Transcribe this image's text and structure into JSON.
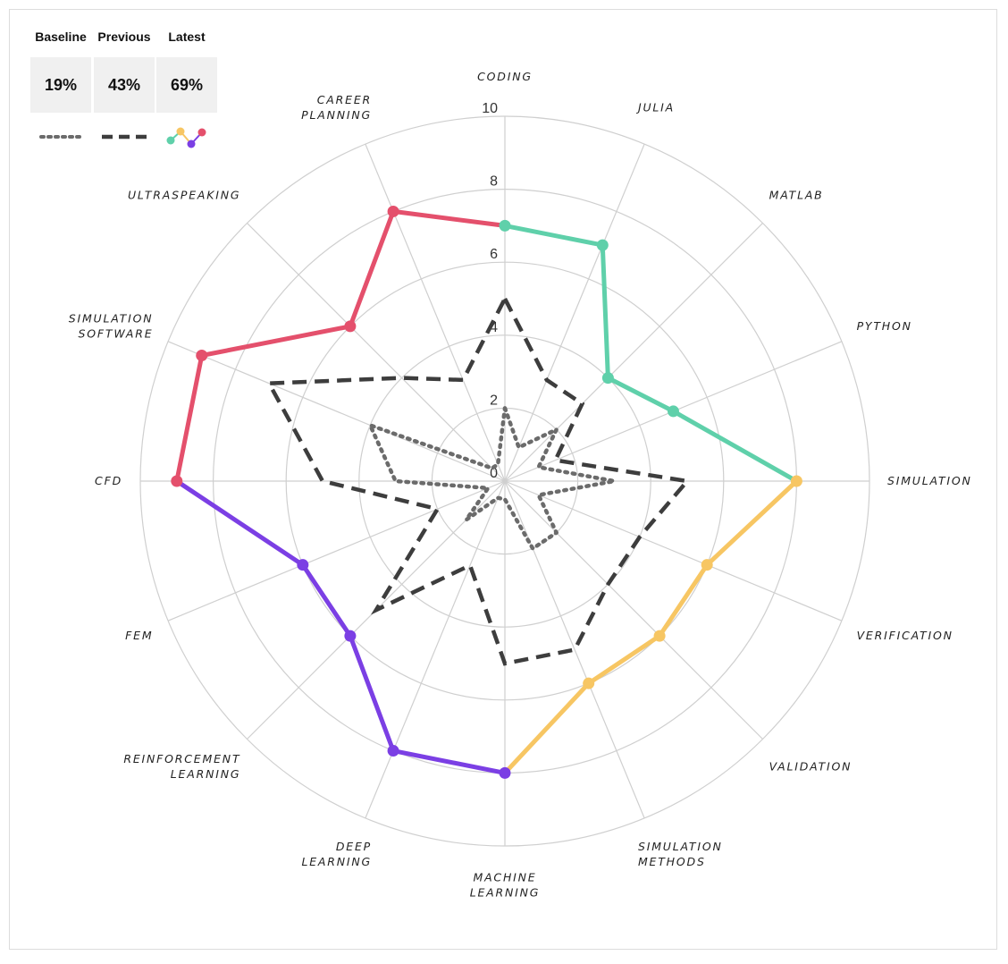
{
  "legend": {
    "baseline": {
      "label": "Baseline",
      "value": "19%"
    },
    "previous": {
      "label": "Previous",
      "value": "43%"
    },
    "latest": {
      "label": "Latest",
      "value": "69%"
    }
  },
  "chart_data": {
    "type": "radar",
    "r_ticks": [
      "0",
      "2",
      "4",
      "6",
      "8",
      "10"
    ],
    "rlim": [
      0,
      10
    ],
    "grid": true,
    "axes": [
      {
        "label": [
          "CODING"
        ]
      },
      {
        "label": [
          "JULIA"
        ]
      },
      {
        "label": [
          "MATLAB"
        ]
      },
      {
        "label": [
          "PYTHON"
        ]
      },
      {
        "label": [
          "SIMULATION"
        ]
      },
      {
        "label": [
          "VERIFICATION"
        ]
      },
      {
        "label": [
          "VALIDATION"
        ]
      },
      {
        "label": [
          "SIMULATION",
          "METHODS"
        ]
      },
      {
        "label": [
          "MACHINE",
          "LEARNING"
        ]
      },
      {
        "label": [
          "DEEP",
          "LEARNING"
        ]
      },
      {
        "label": [
          "REINFORCEMENT",
          "LEARNING"
        ]
      },
      {
        "label": [
          "FEM"
        ]
      },
      {
        "label": [
          "CFD"
        ]
      },
      {
        "label": [
          "SIMULATION",
          "SOFTWARE"
        ]
      },
      {
        "label": [
          "ULTRASPEAKING"
        ]
      },
      {
        "label": [
          "CAREER",
          "PLANNING"
        ]
      }
    ],
    "series": [
      {
        "name": "Baseline",
        "style": "dotted",
        "color": "#6b6b6b",
        "values": [
          2,
          1,
          2,
          1,
          3,
          1,
          2,
          2,
          0.5,
          0.5,
          1.5,
          0.5,
          3,
          4,
          0.5,
          0.5
        ]
      },
      {
        "name": "Previous",
        "style": "dashed",
        "color": "#3d3d3d",
        "values": [
          5,
          3,
          3,
          1.5,
          5,
          4,
          4,
          5,
          5,
          2.5,
          5,
          2,
          5,
          7,
          4,
          3
        ]
      },
      {
        "name": "Latest",
        "style": "solid",
        "values": [
          7,
          7,
          4,
          5,
          8,
          6,
          6,
          6,
          8,
          8,
          6,
          6,
          9,
          9,
          6,
          8
        ],
        "segment_colors": {
          "teal": {
            "color": "#5fd0aa",
            "from": 0,
            "to": 4
          },
          "yellow": {
            "color": "#f7c663",
            "from": 4,
            "to": 8
          },
          "purple": {
            "color": "#7b3fe4",
            "from": 8,
            "to": 12
          },
          "red": {
            "color": "#e4506c",
            "from": 12,
            "to": 16
          }
        }
      }
    ]
  }
}
